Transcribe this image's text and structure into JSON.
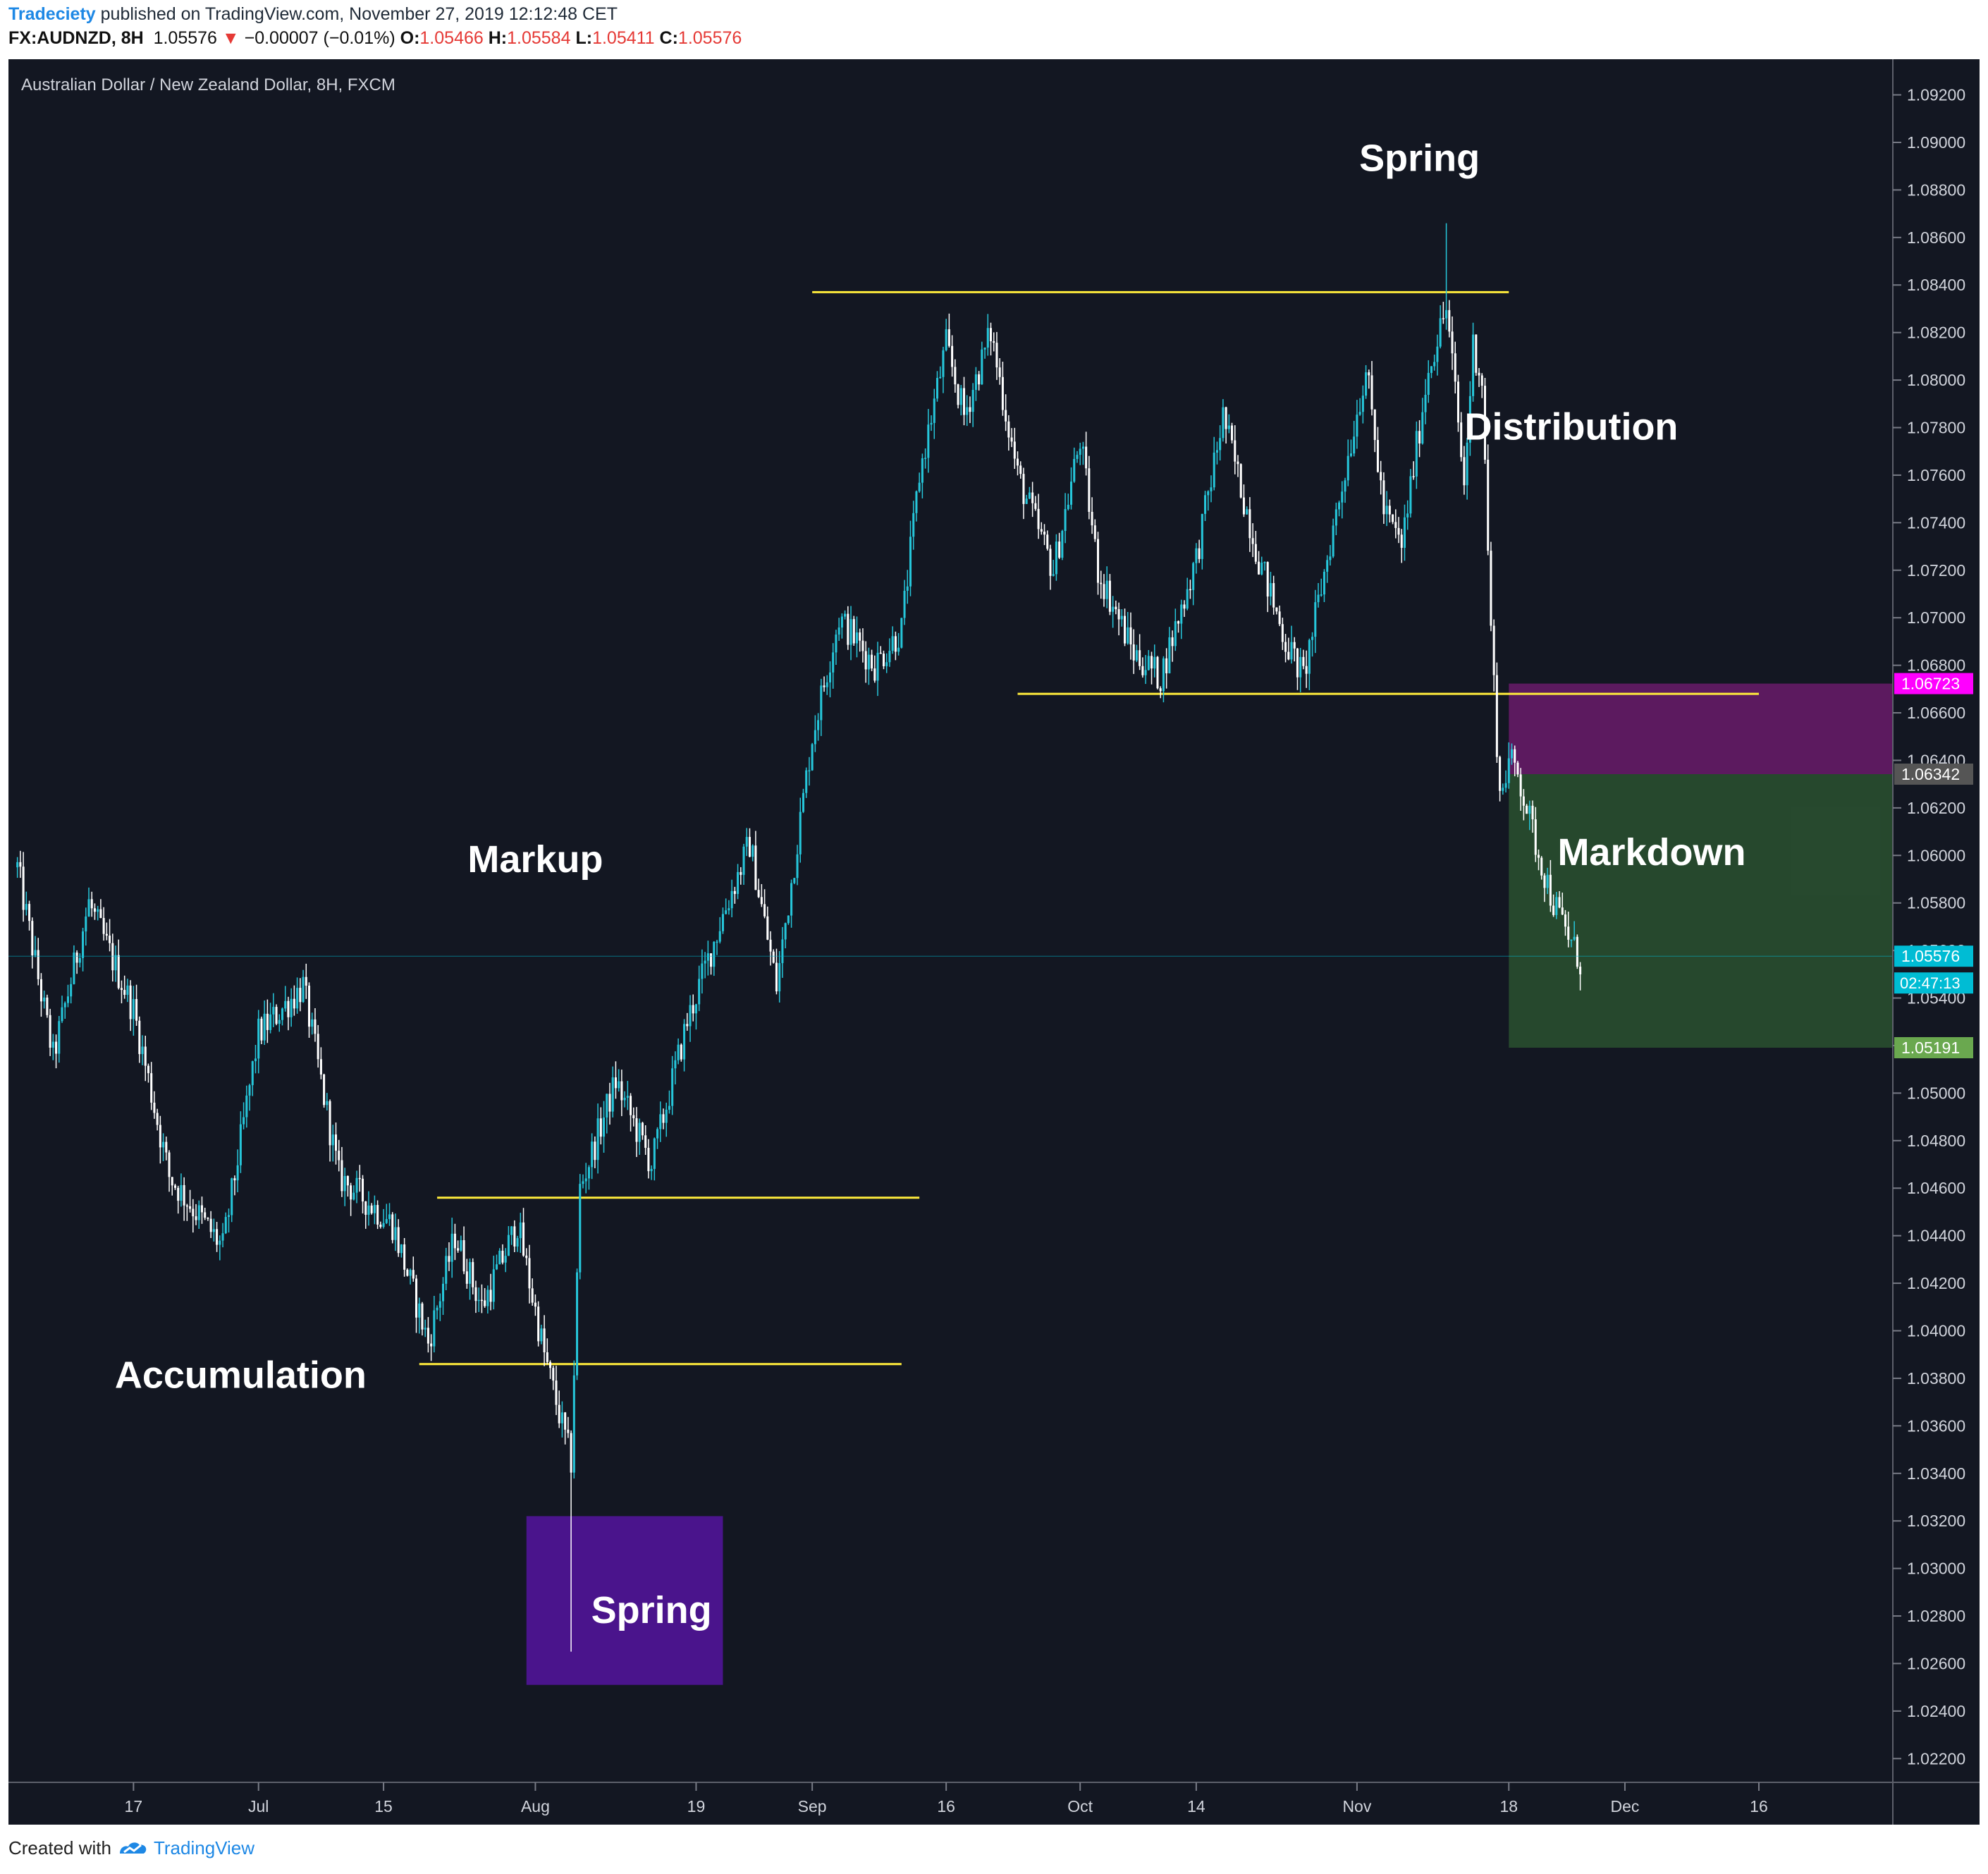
{
  "header": {
    "publisher": "Tradeciety",
    "published_text": " published on TradingView.com, November 27, 2019 12:12:48 CET",
    "symbol": "FX:AUDNZD, 8H",
    "last_price": "1.05576",
    "change_arrow": "▼",
    "change": "−0.00007 (−0.01%)",
    "open_label": "O:",
    "open": "1.05466",
    "high_label": "H:",
    "high": "1.05584",
    "low_label": "L:",
    "low": "1.05411",
    "close_label": "C:",
    "close": "1.05576"
  },
  "footer": {
    "created_with": "Created with",
    "brand": "TradingView"
  },
  "colors": {
    "background": "#131722",
    "candle_up": "#26c6da",
    "candle_down": "#ffffff",
    "level_line": "#ffeb3b",
    "spring_box": "#4a148c",
    "stop_zone": "#6a1b6a",
    "target_zone": "#2e5a32",
    "price_tag_current": "#00bcd4",
    "price_tag_stop": "#ff00ff",
    "price_tag_entry": "#555555",
    "price_tag_target": "#6aa84f"
  },
  "chart_data": {
    "type": "candlestick",
    "title": "Australian Dollar / New Zealand Dollar, 8H, FXCM",
    "timeframe": "8H",
    "ylim": [
      1.021,
      1.0935
    ],
    "y_ticks": [
      "1.09200",
      "1.09000",
      "1.08800",
      "1.08600",
      "1.08400",
      "1.08200",
      "1.08000",
      "1.07800",
      "1.07600",
      "1.07400",
      "1.07200",
      "1.07000",
      "1.06800",
      "1.06600",
      "1.06400",
      "1.06200",
      "1.06000",
      "1.05800",
      "1.05600",
      "1.05400",
      "1.05200",
      "1.05000",
      "1.04800",
      "1.04600",
      "1.04400",
      "1.04200",
      "1.04000",
      "1.03800",
      "1.03600",
      "1.03400",
      "1.03200",
      "1.03000",
      "1.02800",
      "1.02600",
      "1.02400",
      "1.02200"
    ],
    "x_ticks": [
      "17",
      "Jul",
      "15",
      "Aug",
      "19",
      "Sep",
      "16",
      "Oct",
      "14",
      "Nov",
      "18",
      "Dec",
      "16"
    ],
    "x_tick_dates": [
      "2019-06-17",
      "2019-07-01",
      "2019-07-15",
      "2019-08-01",
      "2019-08-19",
      "2019-09-01",
      "2019-09-16",
      "2019-10-01",
      "2019-10-14",
      "2019-11-01",
      "2019-11-18",
      "2019-12-01",
      "2019-12-16"
    ],
    "price_path": [
      {
        "date": "2019-06-04",
        "price": 1.0595
      },
      {
        "date": "2019-06-08",
        "price": 1.0515
      },
      {
        "date": "2019-06-12",
        "price": 1.058
      },
      {
        "date": "2019-06-17",
        "price": 1.0535
      },
      {
        "date": "2019-06-21",
        "price": 1.0465
      },
      {
        "date": "2019-06-27",
        "price": 1.0435
      },
      {
        "date": "2019-07-01",
        "price": 1.0525
      },
      {
        "date": "2019-07-06",
        "price": 1.0545
      },
      {
        "date": "2019-07-10",
        "price": 1.0465
      },
      {
        "date": "2019-07-16",
        "price": 1.0445
      },
      {
        "date": "2019-07-20",
        "price": 1.0395
      },
      {
        "date": "2019-07-23",
        "price": 1.044
      },
      {
        "date": "2019-07-26",
        "price": 1.041
      },
      {
        "date": "2019-07-30",
        "price": 1.0445
      },
      {
        "date": "2019-08-02",
        "price": 1.039
      },
      {
        "date": "2019-08-04",
        "price": 1.036
      },
      {
        "date": "2019-08-05",
        "price": 1.0345
      },
      {
        "date": "2019-08-06",
        "price": 1.046
      },
      {
        "date": "2019-08-10",
        "price": 1.0505
      },
      {
        "date": "2019-08-14",
        "price": 1.047
      },
      {
        "date": "2019-08-18",
        "price": 1.053
      },
      {
        "date": "2019-08-22",
        "price": 1.0575
      },
      {
        "date": "2019-08-25",
        "price": 1.0605
      },
      {
        "date": "2019-08-28",
        "price": 1.0545
      },
      {
        "date": "2019-09-01",
        "price": 1.065
      },
      {
        "date": "2019-09-04",
        "price": 1.07
      },
      {
        "date": "2019-09-08",
        "price": 1.068
      },
      {
        "date": "2019-09-11",
        "price": 1.0695
      },
      {
        "date": "2019-09-13",
        "price": 1.076
      },
      {
        "date": "2019-09-16",
        "price": 1.0815
      },
      {
        "date": "2019-09-18",
        "price": 1.0785
      },
      {
        "date": "2019-09-21",
        "price": 1.082
      },
      {
        "date": "2019-09-24",
        "price": 1.076
      },
      {
        "date": "2019-09-28",
        "price": 1.072
      },
      {
        "date": "2019-10-01",
        "price": 1.0775
      },
      {
        "date": "2019-10-03",
        "price": 1.072
      },
      {
        "date": "2019-10-07",
        "price": 1.0685
      },
      {
        "date": "2019-10-10",
        "price": 1.0675
      },
      {
        "date": "2019-10-14",
        "price": 1.0725
      },
      {
        "date": "2019-10-17",
        "price": 1.0785
      },
      {
        "date": "2019-10-21",
        "price": 1.0725
      },
      {
        "date": "2019-10-24",
        "price": 1.069
      },
      {
        "date": "2019-10-26",
        "price": 1.0675
      },
      {
        "date": "2019-10-30",
        "price": 1.075
      },
      {
        "date": "2019-11-02",
        "price": 1.0805
      },
      {
        "date": "2019-11-04",
        "price": 1.0745
      },
      {
        "date": "2019-11-06",
        "price": 1.073
      },
      {
        "date": "2019-11-09",
        "price": 1.0805
      },
      {
        "date": "2019-11-11",
        "price": 1.083
      },
      {
        "date": "2019-11-12",
        "price": 1.0795
      },
      {
        "date": "2019-11-13",
        "price": 1.0755
      },
      {
        "date": "2019-11-14",
        "price": 1.0815
      },
      {
        "date": "2019-11-15",
        "price": 1.08
      },
      {
        "date": "2019-11-16",
        "price": 1.0695
      },
      {
        "date": "2019-11-17",
        "price": 1.0625
      },
      {
        "date": "2019-11-18",
        "price": 1.064
      },
      {
        "date": "2019-11-19",
        "price": 1.0635
      },
      {
        "date": "2019-11-21",
        "price": 1.0605
      },
      {
        "date": "2019-11-23",
        "price": 1.058
      },
      {
        "date": "2019-11-26",
        "price": 1.0555
      }
    ],
    "wick_extremes": [
      {
        "date": "2019-08-05",
        "low": 1.0265
      },
      {
        "date": "2019-11-11",
        "high": 1.0866
      }
    ],
    "levels": [
      {
        "price": 1.0837,
        "from": "2019-09-01",
        "to": "2019-11-18"
      },
      {
        "price": 1.0668,
        "from": "2019-09-24",
        "to": "2019-12-16"
      },
      {
        "price": 1.0456,
        "from": "2019-07-21",
        "to": "2019-09-13"
      },
      {
        "price": 1.0386,
        "from": "2019-07-19",
        "to": "2019-09-11"
      }
    ],
    "zones": [
      {
        "kind": "spring_box",
        "from": "2019-07-31",
        "to": "2019-08-22",
        "top": 1.0322,
        "bottom": 1.0251
      },
      {
        "kind": "stop",
        "from": "2019-11-18",
        "to": "2019-12-31",
        "top": 1.06723,
        "bottom": 1.06342
      },
      {
        "kind": "target",
        "from": "2019-11-18",
        "to": "2019-12-31",
        "top": 1.06342,
        "bottom": 1.05191
      }
    ],
    "annotations": [
      {
        "text": "Accumulation",
        "date": "2019-06-29",
        "price": 1.0376
      },
      {
        "text": "Spring",
        "date": "2019-08-14",
        "price": 1.0277
      },
      {
        "text": "Markup",
        "date": "2019-08-01",
        "price": 1.0593
      },
      {
        "text": "Spring",
        "date": "2019-11-08",
        "price": 1.0888
      },
      {
        "text": "Distribution",
        "date": "2019-11-25",
        "price": 1.0775
      },
      {
        "text": "Markdown",
        "date": "2019-12-04",
        "price": 1.0596
      }
    ],
    "price_tags": [
      {
        "value": "1.06723",
        "kind": "stop"
      },
      {
        "value": "1.06342",
        "kind": "entry"
      },
      {
        "value": "1.05576",
        "kind": "current"
      },
      {
        "value": "1.05191",
        "kind": "target"
      }
    ],
    "countdown": "02:47:13",
    "current_price": 1.05576
  }
}
